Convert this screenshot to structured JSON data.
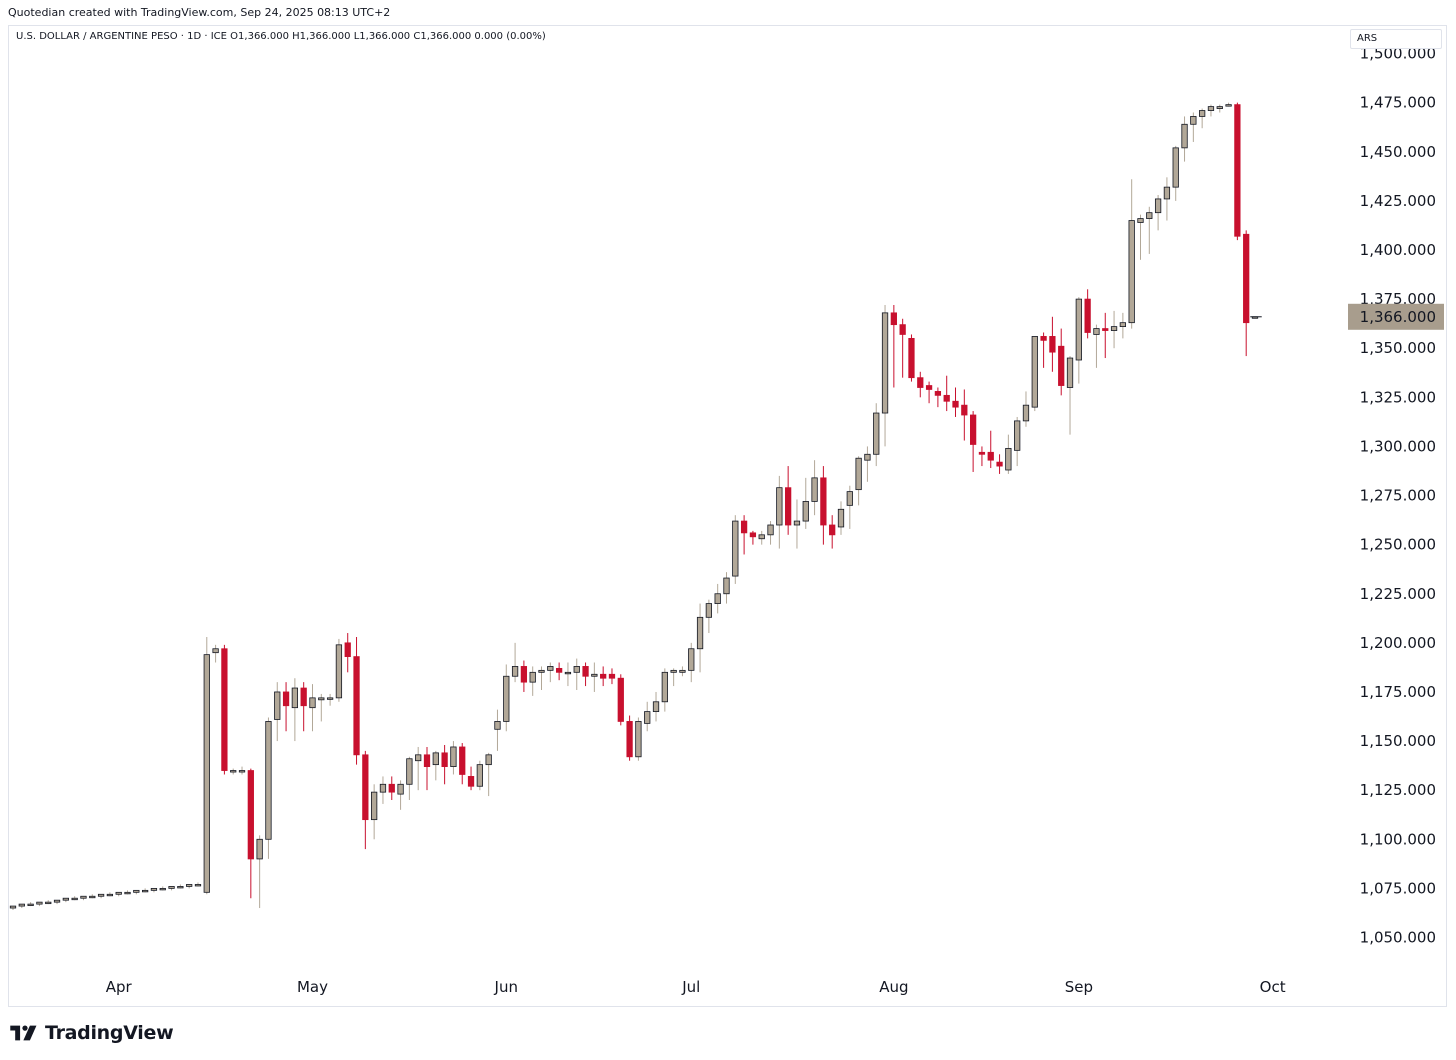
{
  "header": {
    "credit": "Quotedian created with TradingView.com, Sep 24, 2025 08:13 UTC+2",
    "legend": "U.S. DOLLAR / ARGENTINE PESO · 1D · ICE  O1,366.000  H1,366.000  L1,366.000  C1,366.000  0.000 (0.00%)",
    "currency_selector": "ARS"
  },
  "footer": {
    "brand": "TradingView"
  },
  "colors": {
    "up": "#b2a898",
    "down": "#c8102e",
    "outline": "#131722",
    "last_price_bg": "#a89d8d",
    "border": "#e0e3eb"
  },
  "chart_data": {
    "type": "candlestick",
    "title": "U.S. DOLLAR / ARGENTINE PESO",
    "interval": "1D",
    "exchange": "ICE",
    "currency": "ARS",
    "last_price_label": "1,366.000",
    "y_range": [
      1036,
      1512
    ],
    "y_ticks": [
      1050,
      1075,
      1100,
      1125,
      1150,
      1175,
      1200,
      1225,
      1250,
      1275,
      1300,
      1325,
      1350,
      1375,
      1400,
      1425,
      1450,
      1475,
      1500
    ],
    "y_tick_labels": [
      "1,050.000",
      "1,075.000",
      "1,100.000",
      "1,125.000",
      "1,150.000",
      "1,175.000",
      "1,200.000",
      "1,225.000",
      "1,250.000",
      "1,275.000",
      "1,300.000",
      "1,325.000",
      "1,350.000",
      "1,375.000",
      "1,400.000",
      "1,425.000",
      "1,450.000",
      "1,475.000",
      "1,500.000"
    ],
    "x_ticks": [
      {
        "label": "Apr",
        "index": 12
      },
      {
        "label": "May",
        "index": 34
      },
      {
        "label": "Jun",
        "index": 56
      },
      {
        "label": "Jul",
        "index": 77
      },
      {
        "label": "Aug",
        "index": 100
      },
      {
        "label": "Sep",
        "index": 121
      },
      {
        "label": "Oct",
        "index": 143
      }
    ],
    "candles": [
      [
        1065,
        1066,
        1064,
        1066
      ],
      [
        1066,
        1067,
        1065,
        1067
      ],
      [
        1067,
        1068,
        1066,
        1067
      ],
      [
        1067,
        1068,
        1066,
        1068
      ],
      [
        1068,
        1069,
        1067,
        1068
      ],
      [
        1068,
        1069,
        1067,
        1069
      ],
      [
        1069,
        1070,
        1068,
        1070
      ],
      [
        1070,
        1071,
        1069,
        1070
      ],
      [
        1070,
        1071,
        1069,
        1071
      ],
      [
        1071,
        1072,
        1070,
        1071
      ],
      [
        1071,
        1072,
        1070,
        1072
      ],
      [
        1072,
        1073,
        1071,
        1072
      ],
      [
        1072,
        1073,
        1071,
        1073
      ],
      [
        1073,
        1074,
        1072,
        1073
      ],
      [
        1073,
        1074,
        1072,
        1074
      ],
      [
        1074,
        1075,
        1073,
        1074
      ],
      [
        1074,
        1075,
        1073,
        1075
      ],
      [
        1075,
        1076,
        1074,
        1075
      ],
      [
        1075,
        1076,
        1074,
        1076
      ],
      [
        1076,
        1077,
        1075,
        1076
      ],
      [
        1076,
        1077,
        1075,
        1077
      ],
      [
        1077,
        1078,
        1076,
        1077
      ],
      [
        1073,
        1203,
        1072,
        1194
      ],
      [
        1195,
        1199,
        1190,
        1197
      ],
      [
        1197,
        1199,
        1133,
        1135
      ],
      [
        1135,
        1136,
        1133,
        1135
      ],
      [
        1135,
        1137,
        1133,
        1135
      ],
      [
        1135,
        1136,
        1070,
        1090
      ],
      [
        1090,
        1102,
        1065,
        1100
      ],
      [
        1100,
        1162,
        1090,
        1160
      ],
      [
        1161,
        1180,
        1150,
        1175
      ],
      [
        1175,
        1180,
        1155,
        1168
      ],
      [
        1167,
        1182,
        1150,
        1177
      ],
      [
        1177,
        1180,
        1155,
        1168
      ],
      [
        1167,
        1179,
        1155,
        1172
      ],
      [
        1171,
        1174,
        1160,
        1172
      ],
      [
        1172,
        1174,
        1168,
        1172
      ],
      [
        1172,
        1202,
        1170,
        1199
      ],
      [
        1200,
        1205,
        1185,
        1193
      ],
      [
        1193,
        1203,
        1138,
        1143
      ],
      [
        1143,
        1145,
        1095,
        1110
      ],
      [
        1110,
        1128,
        1100,
        1124
      ],
      [
        1124,
        1132,
        1118,
        1128
      ],
      [
        1128,
        1132,
        1120,
        1124
      ],
      [
        1123,
        1130,
        1115,
        1128
      ],
      [
        1128,
        1142,
        1120,
        1141
      ],
      [
        1140,
        1147,
        1125,
        1143
      ],
      [
        1143,
        1147,
        1125,
        1137
      ],
      [
        1138,
        1145,
        1130,
        1144
      ],
      [
        1144,
        1148,
        1128,
        1137
      ],
      [
        1137,
        1150,
        1133,
        1147
      ],
      [
        1147,
        1149,
        1128,
        1133
      ],
      [
        1132,
        1137,
        1125,
        1127
      ],
      [
        1127,
        1140,
        1125,
        1138
      ],
      [
        1138,
        1144,
        1122,
        1143
      ],
      [
        1156,
        1166,
        1145,
        1160
      ],
      [
        1160,
        1189,
        1155,
        1183
      ],
      [
        1183,
        1200,
        1180,
        1188
      ],
      [
        1188,
        1191,
        1175,
        1180
      ],
      [
        1180,
        1188,
        1173,
        1185
      ],
      [
        1185,
        1188,
        1176,
        1186
      ],
      [
        1186,
        1190,
        1180,
        1188
      ],
      [
        1187,
        1190,
        1181,
        1185
      ],
      [
        1185,
        1190,
        1178,
        1185
      ],
      [
        1185,
        1192,
        1176,
        1188
      ],
      [
        1188,
        1190,
        1178,
        1183
      ],
      [
        1183,
        1190,
        1175,
        1184
      ],
      [
        1184,
        1188,
        1178,
        1182
      ],
      [
        1184,
        1187,
        1179,
        1182
      ],
      [
        1182,
        1184,
        1158,
        1160
      ],
      [
        1160,
        1163,
        1140,
        1142
      ],
      [
        1142,
        1162,
        1140,
        1160
      ],
      [
        1159,
        1170,
        1155,
        1165
      ],
      [
        1165,
        1175,
        1160,
        1170
      ],
      [
        1170,
        1187,
        1165,
        1185
      ],
      [
        1185,
        1187,
        1178,
        1186
      ],
      [
        1185,
        1188,
        1183,
        1186
      ],
      [
        1186,
        1200,
        1180,
        1197
      ],
      [
        1197,
        1220,
        1185,
        1213
      ],
      [
        1213,
        1222,
        1205,
        1220
      ],
      [
        1220,
        1230,
        1215,
        1225
      ],
      [
        1225,
        1236,
        1220,
        1233
      ],
      [
        1234,
        1265,
        1230,
        1262
      ],
      [
        1262,
        1265,
        1245,
        1256
      ],
      [
        1256,
        1257,
        1250,
        1254
      ],
      [
        1253,
        1257,
        1250,
        1255
      ],
      [
        1255,
        1262,
        1250,
        1260
      ],
      [
        1260,
        1285,
        1248,
        1279
      ],
      [
        1279,
        1290,
        1255,
        1260
      ],
      [
        1260,
        1273,
        1248,
        1262
      ],
      [
        1262,
        1284,
        1258,
        1272
      ],
      [
        1272,
        1293,
        1265,
        1284
      ],
      [
        1284,
        1290,
        1250,
        1260
      ],
      [
        1260,
        1265,
        1248,
        1255
      ],
      [
        1259,
        1272,
        1255,
        1268
      ],
      [
        1270,
        1280,
        1258,
        1277
      ],
      [
        1278,
        1295,
        1270,
        1294
      ],
      [
        1293,
        1300,
        1282,
        1296
      ],
      [
        1296,
        1322,
        1290,
        1317
      ],
      [
        1317,
        1372,
        1300,
        1368
      ],
      [
        1368,
        1372,
        1330,
        1362
      ],
      [
        1362,
        1365,
        1335,
        1357
      ],
      [
        1355,
        1357,
        1333,
        1335
      ],
      [
        1335,
        1338,
        1325,
        1330
      ],
      [
        1331,
        1333,
        1322,
        1329
      ],
      [
        1328,
        1330,
        1320,
        1326
      ],
      [
        1326,
        1336,
        1318,
        1323
      ],
      [
        1323,
        1330,
        1315,
        1320
      ],
      [
        1321,
        1329,
        1303,
        1316
      ],
      [
        1316,
        1318,
        1287,
        1301
      ],
      [
        1297,
        1300,
        1290,
        1296
      ],
      [
        1297,
        1308,
        1289,
        1293
      ],
      [
        1292,
        1296,
        1286,
        1290
      ],
      [
        1288,
        1306,
        1286,
        1299
      ],
      [
        1298,
        1315,
        1290,
        1313
      ],
      [
        1313,
        1328,
        1310,
        1321
      ],
      [
        1320,
        1356,
        1318,
        1356
      ],
      [
        1356,
        1358,
        1340,
        1354
      ],
      [
        1356,
        1366,
        1338,
        1348
      ],
      [
        1351,
        1360,
        1326,
        1331
      ],
      [
        1330,
        1346,
        1306,
        1345
      ],
      [
        1344,
        1376,
        1332,
        1375
      ],
      [
        1375,
        1380,
        1355,
        1358
      ],
      [
        1357,
        1362,
        1340,
        1360
      ],
      [
        1360,
        1368,
        1345,
        1359
      ],
      [
        1359,
        1369,
        1350,
        1361
      ],
      [
        1361,
        1368,
        1355,
        1363
      ],
      [
        1363,
        1436,
        1360,
        1415
      ],
      [
        1414,
        1418,
        1395,
        1416
      ],
      [
        1416,
        1422,
        1398,
        1419
      ],
      [
        1419,
        1428,
        1410,
        1426
      ],
      [
        1426,
        1437,
        1415,
        1432
      ],
      [
        1432,
        1453,
        1425,
        1452
      ],
      [
        1452,
        1468,
        1445,
        1464
      ],
      [
        1464,
        1470,
        1455,
        1468
      ],
      [
        1468,
        1472,
        1462,
        1471
      ],
      [
        1471,
        1474,
        1468,
        1473
      ],
      [
        1472,
        1474,
        1470,
        1473
      ],
      [
        1474,
        1475,
        1473,
        1474
      ],
      [
        1474,
        1475,
        1405,
        1407
      ],
      [
        1408,
        1410,
        1346,
        1363
      ],
      [
        1366,
        1366,
        1366,
        1366
      ]
    ]
  }
}
